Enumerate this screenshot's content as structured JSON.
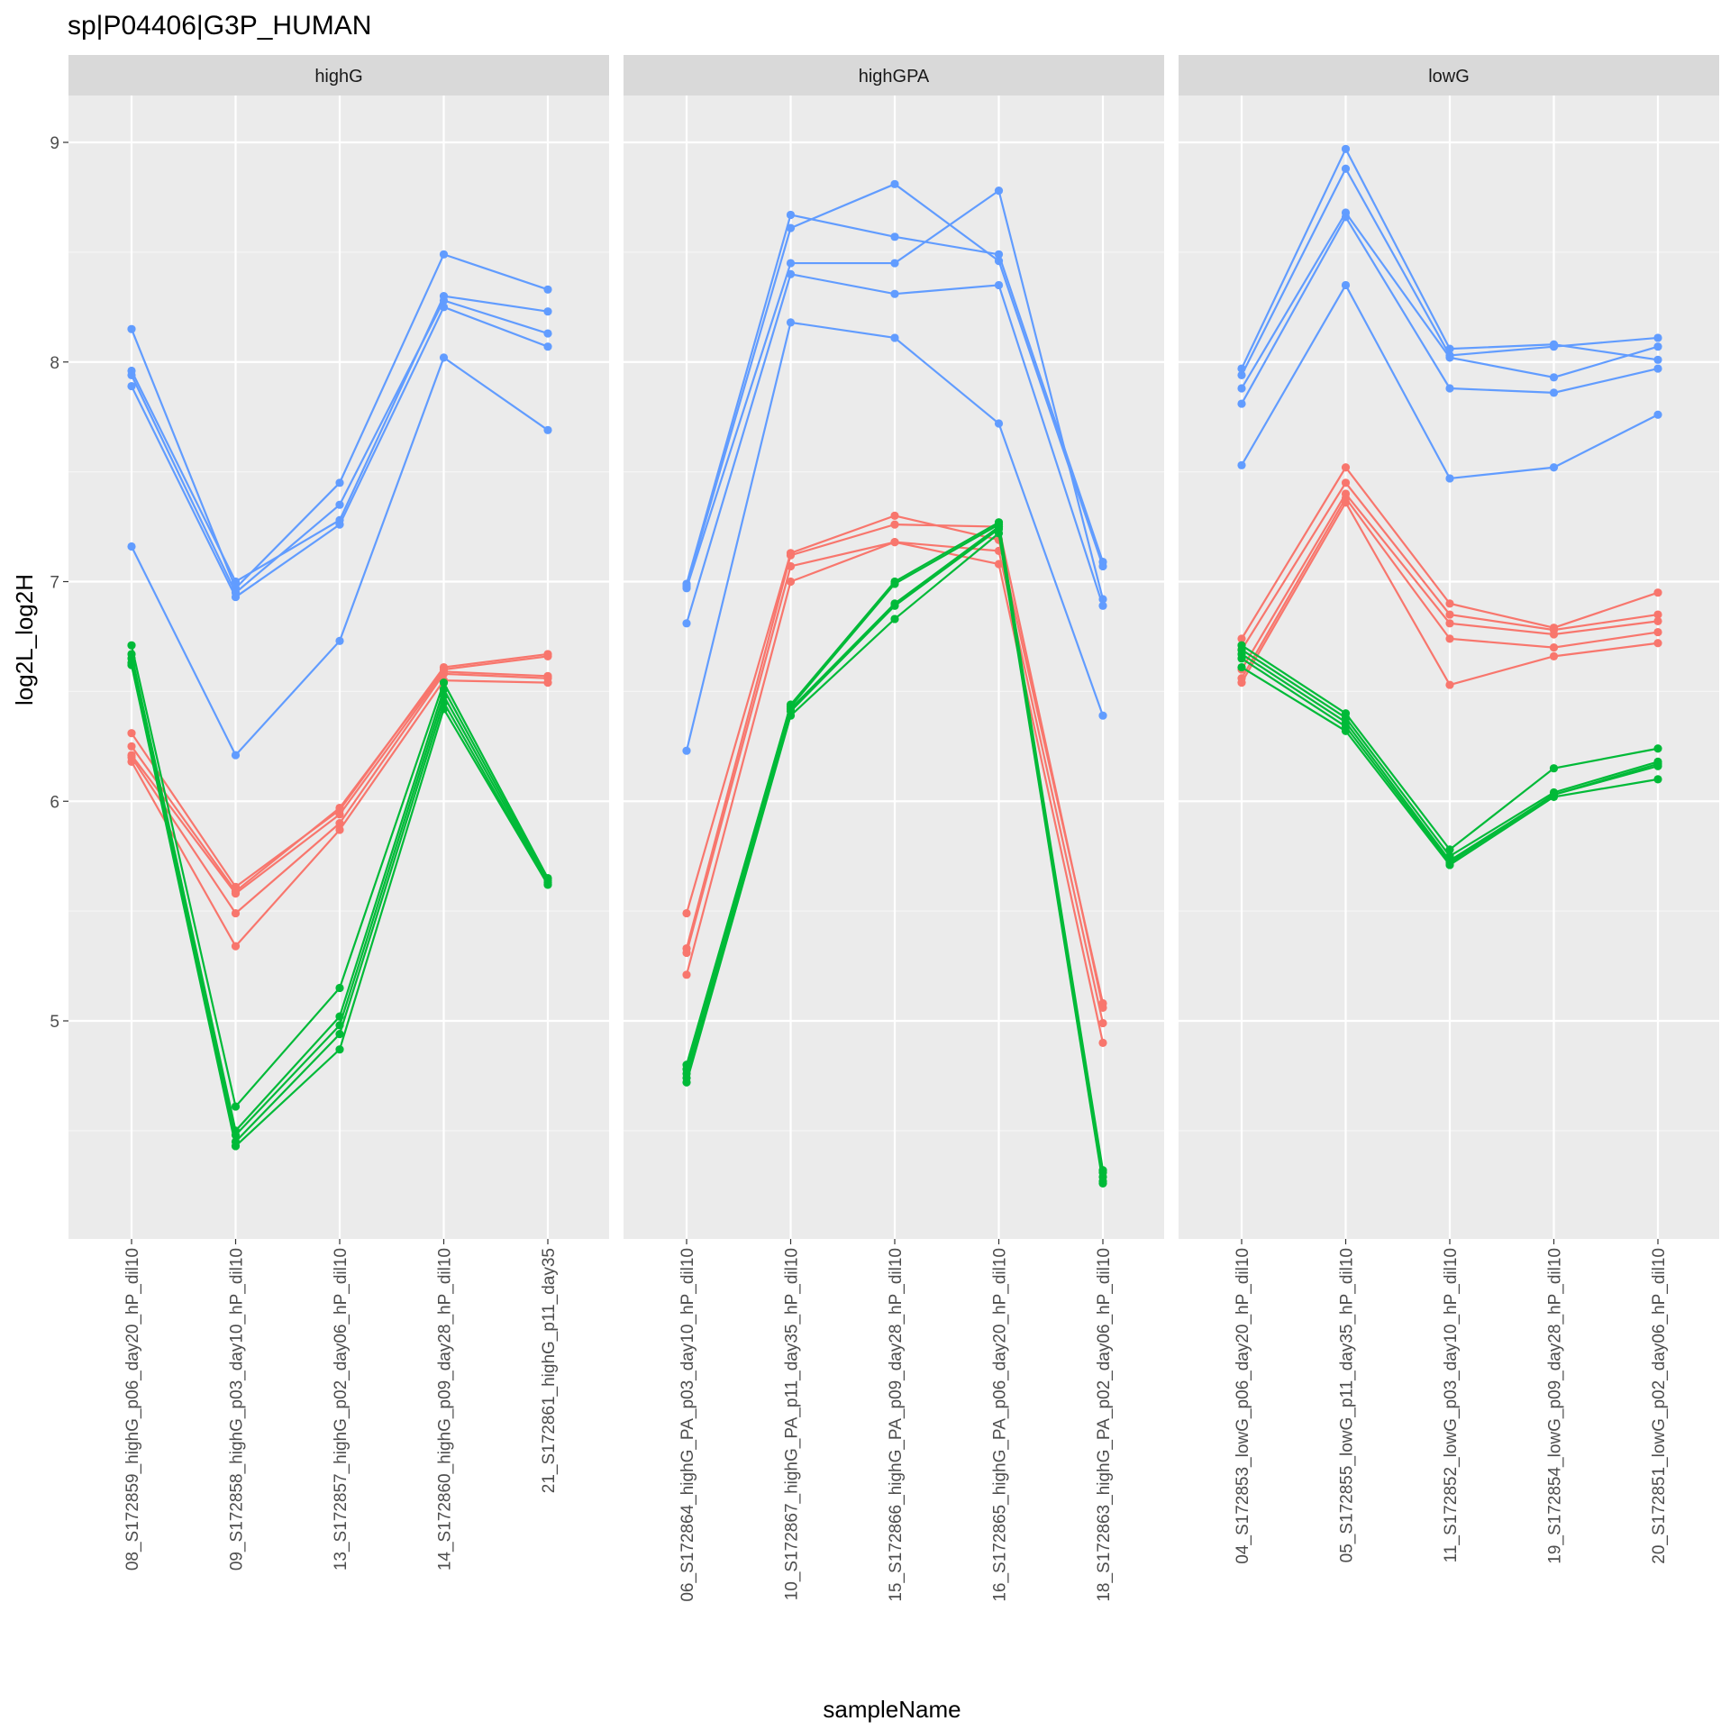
{
  "chart_data": {
    "type": "line",
    "title": "sp|P04406|G3P_HUMAN",
    "xlabel": "sampleName",
    "ylabel": "log2L_log2H",
    "ylim": [
      4.0,
      9.2
    ],
    "y_ticks": [
      5,
      6,
      7,
      8,
      9
    ],
    "grid": true,
    "colors": {
      "red": "#F8766D",
      "green": "#00BA38",
      "blue": "#619CFF"
    },
    "panels": [
      {
        "name": "highG",
        "categories": [
          "08_S172859_highG_p06_day20_hP_dil10",
          "09_S172858_highG_p03_day10_hP_dil10",
          "13_S172857_highG_p02_day06_hP_dil10",
          "14_S172860_highG_p09_day28_hP_dil10",
          "21_S172861_highG_p11_day35"
        ],
        "groups": [
          {
            "color": "blue",
            "lines": [
              [
                8.15,
                6.97,
                7.45,
                8.49,
                8.33
              ],
              [
                7.96,
                7.0,
                7.28,
                8.3,
                8.23
              ],
              [
                7.94,
                6.95,
                7.35,
                8.28,
                8.13
              ],
              [
                7.89,
                6.93,
                7.26,
                8.25,
                8.07
              ],
              [
                7.16,
                6.21,
                6.73,
                8.02,
                7.69
              ]
            ]
          },
          {
            "color": "red",
            "lines": [
              [
                6.31,
                5.61,
                5.96,
                6.61,
                6.67
              ],
              [
                6.25,
                5.59,
                5.97,
                6.6,
                6.66
              ],
              [
                6.21,
                5.58,
                5.94,
                6.59,
                6.57
              ],
              [
                6.2,
                5.49,
                5.9,
                6.58,
                6.56
              ],
              [
                6.18,
                5.34,
                5.87,
                6.55,
                6.54
              ]
            ]
          },
          {
            "color": "green",
            "lines": [
              [
                6.71,
                4.61,
                5.15,
                6.54,
                5.65
              ],
              [
                6.67,
                4.5,
                5.02,
                6.51,
                5.64
              ],
              [
                6.65,
                4.48,
                4.98,
                6.48,
                5.63
              ],
              [
                6.63,
                4.45,
                4.94,
                6.45,
                5.62
              ],
              [
                6.62,
                4.43,
                4.87,
                6.42,
                5.62
              ]
            ]
          }
        ]
      },
      {
        "name": "highGPA",
        "categories": [
          "06_S172864_highG_PA_p03_day10_hP_dil10",
          "10_S172867_highG_PA_p11_day35_hP_dil10",
          "15_S172866_highG_PA_p09_day28_hP_dil10",
          "16_S172865_highG_PA_p06_day20_hP_dil10",
          "18_S172863_highG_PA_p02_day06_hP_dil10"
        ],
        "groups": [
          {
            "color": "blue",
            "lines": [
              [
                6.99,
                8.67,
                8.57,
                8.49,
                7.09
              ],
              [
                6.98,
                8.61,
                8.81,
                8.46,
                7.07
              ],
              [
                6.97,
                8.45,
                8.45,
                8.78,
                6.92
              ],
              [
                6.81,
                8.4,
                8.31,
                8.35,
                6.89
              ],
              [
                6.23,
                8.18,
                8.11,
                7.72,
                6.39
              ]
            ]
          },
          {
            "color": "red",
            "lines": [
              [
                5.49,
                7.13,
                7.3,
                7.19,
                5.08
              ],
              [
                5.33,
                7.12,
                7.26,
                7.25,
                5.06
              ],
              [
                5.31,
                7.07,
                7.18,
                7.14,
                4.99
              ],
              [
                5.21,
                7.0,
                7.18,
                7.08,
                4.9
              ]
            ]
          },
          {
            "color": "green",
            "lines": [
              [
                4.8,
                6.44,
                7.0,
                7.27,
                4.32
              ],
              [
                4.78,
                6.43,
                6.99,
                7.26,
                4.31
              ],
              [
                4.76,
                6.42,
                6.9,
                7.25,
                4.29
              ],
              [
                4.74,
                6.41,
                6.89,
                7.24,
                4.27
              ],
              [
                4.72,
                6.39,
                6.83,
                7.22,
                4.26
              ]
            ]
          }
        ]
      },
      {
        "name": "lowG",
        "categories": [
          "04_S172853_lowG_p06_day20_hP_dil10",
          "05_S172855_lowG_p11_day35_hP_dil10",
          "11_S172852_lowG_p03_day10_hP_dil10",
          "19_S172854_lowG_p09_day28_hP_dil10",
          "20_S172851_lowG_p02_day06_hP_dil10"
        ],
        "groups": [
          {
            "color": "blue",
            "lines": [
              [
                7.97,
                8.97,
                8.06,
                8.08,
                8.01
              ],
              [
                7.94,
                8.88,
                8.03,
                8.07,
                8.11
              ],
              [
                7.88,
                8.68,
                8.02,
                7.93,
                8.07
              ],
              [
                7.81,
                8.66,
                7.88,
                7.86,
                7.97
              ],
              [
                7.53,
                8.35,
                7.47,
                7.52,
                7.76
              ]
            ]
          },
          {
            "color": "red",
            "lines": [
              [
                6.74,
                7.52,
                6.9,
                6.79,
                6.95
              ],
              [
                6.69,
                7.45,
                6.85,
                6.78,
                6.85
              ],
              [
                6.6,
                7.4,
                6.81,
                6.76,
                6.82
              ],
              [
                6.56,
                7.38,
                6.74,
                6.7,
                6.77
              ],
              [
                6.54,
                7.36,
                6.53,
                6.66,
                6.72
              ]
            ]
          },
          {
            "color": "green",
            "lines": [
              [
                6.71,
                6.4,
                5.78,
                6.15,
                6.24
              ],
              [
                6.69,
                6.38,
                5.75,
                6.04,
                6.18
              ],
              [
                6.67,
                6.36,
                5.73,
                6.03,
                6.17
              ],
              [
                6.65,
                6.34,
                5.72,
                6.03,
                6.16
              ],
              [
                6.61,
                6.32,
                5.71,
                6.02,
                6.1
              ]
            ]
          }
        ]
      }
    ]
  }
}
